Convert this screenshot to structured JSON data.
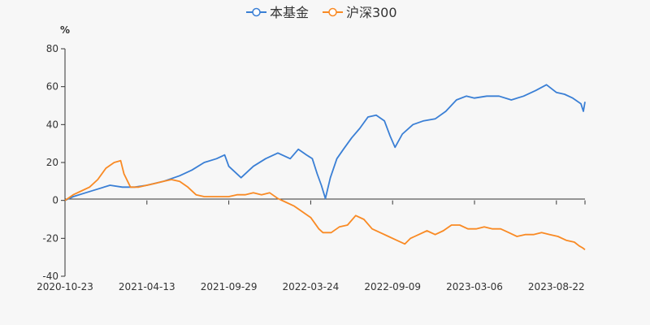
{
  "chart_data": {
    "type": "line",
    "title": "",
    "ylabel": "%",
    "xlabel": "",
    "ylim": [
      -40,
      80
    ],
    "yticks": [
      80,
      60,
      40,
      20,
      0,
      -20,
      -40
    ],
    "x_tick_labels": [
      "2020-10-23",
      "2021-04-13",
      "2021-09-29",
      "2022-03-24",
      "2022-09-09",
      "2023-03-06",
      "2023-08-22"
    ],
    "x_domain": [
      0,
      6.35
    ],
    "legend_position": "top-center",
    "series": [
      {
        "name": "本基金",
        "color": "#3a7fd5",
        "points": [
          [
            0.0,
            0
          ],
          [
            0.1,
            2
          ],
          [
            0.25,
            4
          ],
          [
            0.4,
            6
          ],
          [
            0.55,
            8
          ],
          [
            0.7,
            7
          ],
          [
            0.85,
            7
          ],
          [
            1.0,
            8
          ],
          [
            1.2,
            10
          ],
          [
            1.4,
            13
          ],
          [
            1.55,
            16
          ],
          [
            1.7,
            20
          ],
          [
            1.85,
            22
          ],
          [
            1.95,
            24
          ],
          [
            2.0,
            18
          ],
          [
            2.15,
            12
          ],
          [
            2.3,
            18
          ],
          [
            2.45,
            22
          ],
          [
            2.6,
            25
          ],
          [
            2.75,
            22
          ],
          [
            2.85,
            27
          ],
          [
            2.95,
            24
          ],
          [
            3.02,
            22
          ],
          [
            3.08,
            14
          ],
          [
            3.13,
            8
          ],
          [
            3.18,
            1
          ],
          [
            3.24,
            12
          ],
          [
            3.32,
            22
          ],
          [
            3.4,
            27
          ],
          [
            3.5,
            33
          ],
          [
            3.6,
            38
          ],
          [
            3.7,
            44
          ],
          [
            3.8,
            45
          ],
          [
            3.9,
            42
          ],
          [
            3.97,
            34
          ],
          [
            4.03,
            28
          ],
          [
            4.12,
            35
          ],
          [
            4.25,
            40
          ],
          [
            4.38,
            42
          ],
          [
            4.52,
            43
          ],
          [
            4.65,
            47
          ],
          [
            4.78,
            53
          ],
          [
            4.9,
            55
          ],
          [
            5.0,
            54
          ],
          [
            5.15,
            55
          ],
          [
            5.3,
            55
          ],
          [
            5.45,
            53
          ],
          [
            5.6,
            55
          ],
          [
            5.75,
            58
          ],
          [
            5.88,
            61
          ],
          [
            6.0,
            57
          ],
          [
            6.1,
            56
          ],
          [
            6.2,
            54
          ],
          [
            6.3,
            51
          ],
          [
            6.33,
            47
          ],
          [
            6.35,
            52
          ]
        ]
      },
      {
        "name": "沪深300",
        "color": "#f98a24",
        "points": [
          [
            0.0,
            0
          ],
          [
            0.1,
            3
          ],
          [
            0.2,
            5
          ],
          [
            0.3,
            7
          ],
          [
            0.4,
            11
          ],
          [
            0.5,
            17
          ],
          [
            0.6,
            20
          ],
          [
            0.68,
            21
          ],
          [
            0.72,
            14
          ],
          [
            0.8,
            7
          ],
          [
            0.9,
            7
          ],
          [
            1.0,
            8
          ],
          [
            1.1,
            9
          ],
          [
            1.2,
            10
          ],
          [
            1.3,
            11
          ],
          [
            1.4,
            10
          ],
          [
            1.5,
            7
          ],
          [
            1.6,
            3
          ],
          [
            1.7,
            2
          ],
          [
            1.8,
            2
          ],
          [
            1.9,
            2
          ],
          [
            2.0,
            2
          ],
          [
            2.1,
            3
          ],
          [
            2.2,
            3
          ],
          [
            2.3,
            4
          ],
          [
            2.4,
            3
          ],
          [
            2.5,
            4
          ],
          [
            2.6,
            1
          ],
          [
            2.7,
            -1
          ],
          [
            2.8,
            -3
          ],
          [
            2.9,
            -6
          ],
          [
            3.0,
            -9
          ],
          [
            3.05,
            -12
          ],
          [
            3.1,
            -15
          ],
          [
            3.15,
            -17
          ],
          [
            3.25,
            -17
          ],
          [
            3.35,
            -14
          ],
          [
            3.45,
            -13
          ],
          [
            3.55,
            -8
          ],
          [
            3.65,
            -10
          ],
          [
            3.75,
            -15
          ],
          [
            3.85,
            -17
          ],
          [
            3.95,
            -19
          ],
          [
            4.05,
            -21
          ],
          [
            4.15,
            -23
          ],
          [
            4.22,
            -20
          ],
          [
            4.32,
            -18
          ],
          [
            4.42,
            -16
          ],
          [
            4.52,
            -18
          ],
          [
            4.62,
            -16
          ],
          [
            4.72,
            -13
          ],
          [
            4.82,
            -13
          ],
          [
            4.92,
            -15
          ],
          [
            5.02,
            -15
          ],
          [
            5.12,
            -14
          ],
          [
            5.22,
            -15
          ],
          [
            5.32,
            -15
          ],
          [
            5.42,
            -17
          ],
          [
            5.52,
            -19
          ],
          [
            5.62,
            -18
          ],
          [
            5.72,
            -18
          ],
          [
            5.82,
            -17
          ],
          [
            5.92,
            -18
          ],
          [
            6.02,
            -19
          ],
          [
            6.12,
            -21
          ],
          [
            6.22,
            -22
          ],
          [
            6.28,
            -24
          ],
          [
            6.32,
            -25
          ],
          [
            6.35,
            -26
          ]
        ]
      }
    ]
  }
}
